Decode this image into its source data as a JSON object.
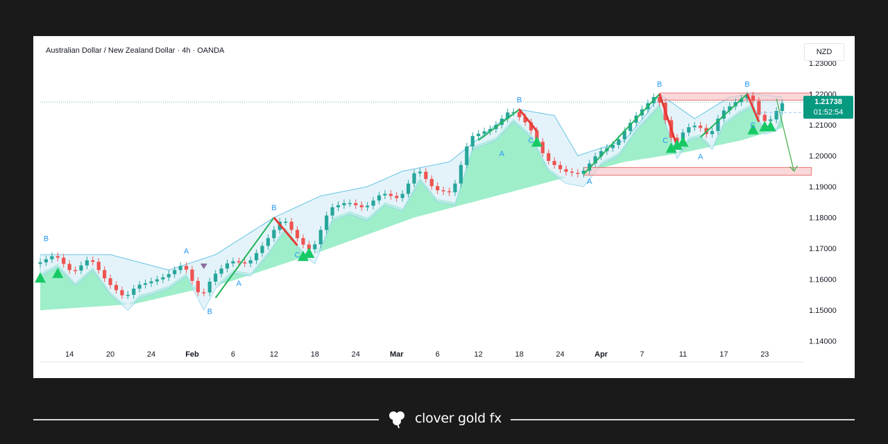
{
  "header": {
    "title": "Australian Dollar / New Zealand Dollar · 4h · OANDA",
    "currency": "NZD"
  },
  "footer": {
    "brand": "clover gold fx"
  },
  "colors": {
    "up": "#26a69a",
    "down": "#ef5350",
    "cloud": "#7ee8b8",
    "price_tag": "#089981",
    "zone": "#f8c7cb"
  },
  "chart_data": {
    "type": "line",
    "title": "Australian Dollar / New Zealand Dollar · 4h · OANDA",
    "ylim": [
      1.135,
      1.232
    ],
    "y_ticks": [
      "1.14000",
      "1.15000",
      "1.16000",
      "1.17000",
      "1.18000",
      "1.19000",
      "1.20000",
      "1.21000",
      "1.22000"
    ],
    "y_top_partial": "1.23000",
    "x_ticks": [
      {
        "label": "14",
        "i": 5,
        "bold": false
      },
      {
        "label": "20",
        "i": 12,
        "bold": false
      },
      {
        "label": "24",
        "i": 19,
        "bold": false
      },
      {
        "label": "Feb",
        "i": 26,
        "bold": true
      },
      {
        "label": "6",
        "i": 33,
        "bold": false
      },
      {
        "label": "12",
        "i": 40,
        "bold": false
      },
      {
        "label": "18",
        "i": 47,
        "bold": false
      },
      {
        "label": "24",
        "i": 54,
        "bold": false
      },
      {
        "label": "Mar",
        "i": 61,
        "bold": true
      },
      {
        "label": "6",
        "i": 68,
        "bold": false
      },
      {
        "label": "12",
        "i": 75,
        "bold": false
      },
      {
        "label": "18",
        "i": 82,
        "bold": false
      },
      {
        "label": "24",
        "i": 89,
        "bold": false
      },
      {
        "label": "Apr",
        "i": 96,
        "bold": true
      },
      {
        "label": "7",
        "i": 103,
        "bold": false
      },
      {
        "label": "11",
        "i": 110,
        "bold": false
      },
      {
        "label": "17",
        "i": 117,
        "bold": false
      },
      {
        "label": "23",
        "i": 124,
        "bold": false
      }
    ],
    "x_count": 128,
    "price": {
      "i": [
        0,
        3,
        6,
        9,
        12,
        15,
        17,
        19,
        22,
        25,
        28,
        30,
        33,
        36,
        39,
        42,
        45,
        47,
        50,
        53,
        56,
        59,
        62,
        65,
        68,
        71,
        74,
        78,
        81,
        84,
        87,
        90,
        93,
        96,
        99,
        102,
        106,
        109,
        111,
        113,
        115,
        117,
        120,
        122,
        124,
        126,
        127
      ],
      "y": [
        1.165,
        1.168,
        1.162,
        1.167,
        1.159,
        1.154,
        1.158,
        1.159,
        1.161,
        1.165,
        1.154,
        1.161,
        1.166,
        1.165,
        1.172,
        1.18,
        1.172,
        1.169,
        1.183,
        1.185,
        1.183,
        1.188,
        1.186,
        1.196,
        1.189,
        1.188,
        1.206,
        1.209,
        1.215,
        1.21,
        1.199,
        1.195,
        1.194,
        1.201,
        1.204,
        1.212,
        1.22,
        1.203,
        1.209,
        1.21,
        1.206,
        1.214,
        1.218,
        1.22,
        1.211,
        1.212,
        1.217
      ]
    },
    "baseline": {
      "i": [
        0,
        16,
        32,
        48,
        64,
        80,
        92,
        100,
        110,
        120,
        127
      ],
      "y": [
        1.15,
        1.152,
        1.159,
        1.169,
        1.18,
        1.188,
        1.194,
        1.198,
        1.201,
        1.205,
        1.209
      ]
    },
    "band_upper": {
      "i": [
        0,
        12,
        22,
        30,
        40,
        48,
        56,
        62,
        70,
        78,
        82,
        88,
        92,
        100,
        104,
        106,
        112,
        118,
        122,
        127
      ],
      "y": [
        1.168,
        1.168,
        1.163,
        1.168,
        1.18,
        1.187,
        1.19,
        1.195,
        1.198,
        1.21,
        1.215,
        1.213,
        1.2,
        1.205,
        1.214,
        1.22,
        1.212,
        1.219,
        1.22,
        1.219
      ]
    },
    "last_price": {
      "value": "1.21738",
      "countdown": "01:52:54",
      "y": 1.21738
    },
    "zones": [
      {
        "i0": 106,
        "i1": 132,
        "y0": 1.218,
        "y1": 1.2203
      },
      {
        "i0": 93,
        "i1": 132,
        "y0": 1.1937,
        "y1": 1.1962
      }
    ],
    "wave_labels": [
      {
        "label": "B",
        "i": 1,
        "y": 1.171,
        "pos": "above"
      },
      {
        "label": "A",
        "i": 25,
        "y": 1.167,
        "pos": "above"
      },
      {
        "label": "B",
        "i": 29,
        "y": 1.152,
        "pos": "below"
      },
      {
        "label": "A",
        "i": 34,
        "y": 1.161,
        "pos": "below"
      },
      {
        "label": "B",
        "i": 40,
        "y": 1.181,
        "pos": "above"
      },
      {
        "label": "C",
        "i": 44,
        "y": 1.168,
        "pos": "mid"
      },
      {
        "label": "A",
        "i": 79,
        "y": 1.203,
        "pos": "below"
      },
      {
        "label": "B",
        "i": 82,
        "y": 1.216,
        "pos": "above"
      },
      {
        "label": "C",
        "i": 84,
        "y": 1.205,
        "pos": "mid"
      },
      {
        "label": "A",
        "i": 94,
        "y": 1.194,
        "pos": "below"
      },
      {
        "label": "B",
        "i": 106,
        "y": 1.221,
        "pos": "above"
      },
      {
        "label": "C",
        "i": 107,
        "y": 1.205,
        "pos": "mid"
      },
      {
        "label": "A",
        "i": 113,
        "y": 1.202,
        "pos": "below"
      },
      {
        "label": "B",
        "i": 121,
        "y": 1.221,
        "pos": "above"
      },
      {
        "label": "C",
        "i": 122,
        "y": 1.21,
        "pos": "mid"
      }
    ],
    "triangles": [
      {
        "i": 0,
        "y": 1.1605
      },
      {
        "i": 3,
        "y": 1.162
      },
      {
        "i": 45,
        "y": 1.1675
      },
      {
        "i": 46,
        "y": 1.1685
      },
      {
        "i": 85,
        "y": 1.2045
      },
      {
        "i": 108,
        "y": 1.2025
      },
      {
        "i": 109,
        "y": 1.2035
      },
      {
        "i": 110,
        "y": 1.2045
      },
      {
        "i": 122,
        "y": 1.2085
      },
      {
        "i": 124,
        "y": 1.2095
      },
      {
        "i": 125,
        "y": 1.2095
      }
    ],
    "small_markers": [
      {
        "i": 28,
        "y": 1.164
      }
    ],
    "impulse_lines": [
      [
        [
          30,
          1.154
        ],
        [
          40,
          1.18
        ]
      ],
      [
        [
          75,
          1.205
        ],
        [
          82,
          1.215
        ]
      ],
      [
        [
          93,
          1.194
        ],
        [
          106,
          1.22
        ]
      ],
      [
        [
          113,
          1.206
        ],
        [
          121,
          1.22
        ]
      ]
    ],
    "correction_lines": [
      [
        [
          40,
          1.18
        ],
        [
          44,
          1.171
        ]
      ],
      [
        [
          82,
          1.215
        ],
        [
          85,
          1.208
        ]
      ],
      [
        [
          106,
          1.22
        ],
        [
          109,
          1.203
        ]
      ],
      [
        [
          121,
          1.22
        ],
        [
          123,
          1.211
        ]
      ]
    ],
    "projection": {
      "from": [
        126,
        1.2185
      ],
      "to": [
        129,
        1.195
      ]
    }
  }
}
